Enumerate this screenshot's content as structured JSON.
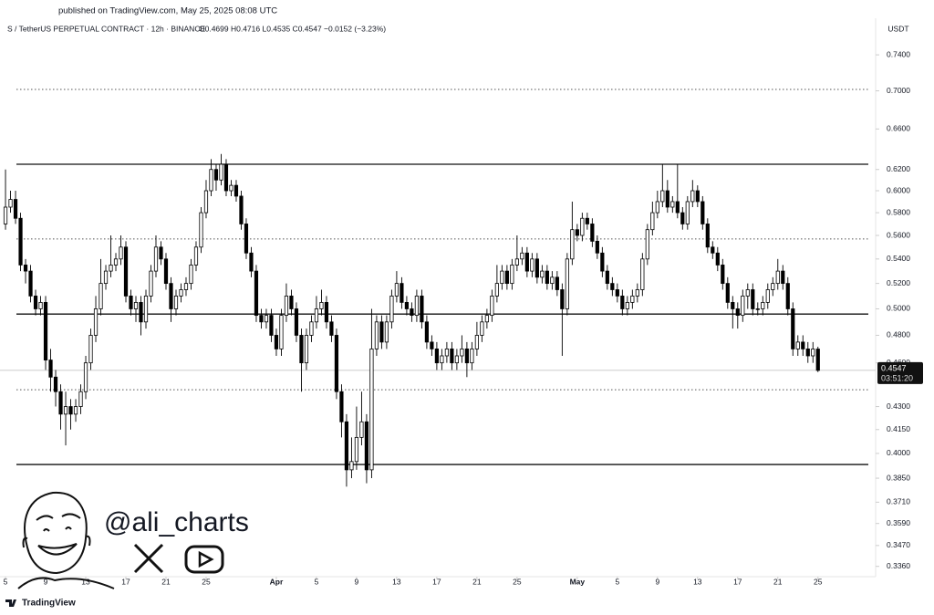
{
  "chart_data": {
    "type": "candlestick",
    "published": "published on TradingView.com, May 25, 2025 08:08 UTC",
    "symbol": "S / TetherUS PERPETUAL CONTRACT · 12h · BINANCE",
    "ohlc_header": "O0.4699 H0.4716 L0.4535 C0.4547 −0.0152 (−3.23%)",
    "currency": "USDT",
    "watermark": "@ali_charts",
    "brand": "TradingView",
    "last_price": 0.4547,
    "countdown": "03:51:20",
    "log_scale": true,
    "up_color": "#ffffff",
    "down_color": "#000000",
    "outline_color": "#000000",
    "ylim": [
      0.3307,
      0.783
    ],
    "yticks": [
      {
        "value": 0.74,
        "label": "0.7400"
      },
      {
        "value": 0.7,
        "label": "0.7000"
      },
      {
        "value": 0.66,
        "label": "0.6600"
      },
      {
        "value": 0.62,
        "label": "0.6200"
      },
      {
        "value": 0.6,
        "label": "0.6000"
      },
      {
        "value": 0.58,
        "label": "0.5800"
      },
      {
        "value": 0.56,
        "label": "0.5600"
      },
      {
        "value": 0.54,
        "label": "0.5400"
      },
      {
        "value": 0.52,
        "label": "0.5200"
      },
      {
        "value": 0.5,
        "label": "0.5000"
      },
      {
        "value": 0.48,
        "label": "0.4800"
      },
      {
        "value": 0.46,
        "label": "0.4600"
      },
      {
        "value": 0.43,
        "label": "0.4300"
      },
      {
        "value": 0.415,
        "label": "0.4150"
      },
      {
        "value": 0.4,
        "label": "0.4000"
      },
      {
        "value": 0.385,
        "label": "0.3850"
      },
      {
        "value": 0.371,
        "label": "0.3710"
      },
      {
        "value": 0.359,
        "label": "0.3590"
      },
      {
        "value": 0.347,
        "label": "0.3470"
      },
      {
        "value": 0.336,
        "label": "0.3360"
      }
    ],
    "xlim": [
      -1.1,
      173.5
    ],
    "xticks": [
      {
        "value": 0,
        "label": "5"
      },
      {
        "value": 8,
        "label": "9"
      },
      {
        "value": 16,
        "label": "13"
      },
      {
        "value": 24,
        "label": "17"
      },
      {
        "value": 32,
        "label": "21"
      },
      {
        "value": 40,
        "label": "25"
      },
      {
        "value": 54,
        "label": "Apr"
      },
      {
        "value": 62,
        "label": "5"
      },
      {
        "value": 70,
        "label": "9"
      },
      {
        "value": 78,
        "label": "13"
      },
      {
        "value": 86,
        "label": "17"
      },
      {
        "value": 94,
        "label": "21"
      },
      {
        "value": 102,
        "label": "25"
      },
      {
        "value": 114,
        "label": "May"
      },
      {
        "value": 122,
        "label": "5"
      },
      {
        "value": 130,
        "label": "9"
      },
      {
        "value": 138,
        "label": "13"
      },
      {
        "value": 146,
        "label": "17"
      },
      {
        "value": 154,
        "label": "21"
      },
      {
        "value": 162,
        "label": "25"
      }
    ],
    "levels": [
      {
        "value": 0.7015,
        "style": "dotted"
      },
      {
        "value": 0.625,
        "style": "solid"
      },
      {
        "value": 0.557,
        "style": "dotted"
      },
      {
        "value": 0.496,
        "style": "solid"
      },
      {
        "value": 0.4413,
        "style": "dotted"
      },
      {
        "value": 0.3932,
        "style": "solid"
      }
    ],
    "ohlc": [
      [
        0.57,
        0.62,
        0.565,
        0.585
      ],
      [
        0.585,
        0.6,
        0.58,
        0.592
      ],
      [
        0.592,
        0.6,
        0.57,
        0.575
      ],
      [
        0.575,
        0.58,
        0.53,
        0.535
      ],
      [
        0.535,
        0.54,
        0.52,
        0.53
      ],
      [
        0.53,
        0.535,
        0.505,
        0.51
      ],
      [
        0.51,
        0.515,
        0.495,
        0.5
      ],
      [
        0.5,
        0.51,
        0.495,
        0.505
      ],
      [
        0.505,
        0.51,
        0.455,
        0.462
      ],
      [
        0.462,
        0.47,
        0.44,
        0.45
      ],
      [
        0.45,
        0.455,
        0.43,
        0.44
      ],
      [
        0.44,
        0.445,
        0.415,
        0.425
      ],
      [
        0.425,
        0.44,
        0.405,
        0.43
      ],
      [
        0.43,
        0.435,
        0.415,
        0.425
      ],
      [
        0.425,
        0.435,
        0.42,
        0.43
      ],
      [
        0.43,
        0.445,
        0.425,
        0.44
      ],
      [
        0.44,
        0.465,
        0.435,
        0.46
      ],
      [
        0.46,
        0.485,
        0.455,
        0.48
      ],
      [
        0.48,
        0.51,
        0.475,
        0.5
      ],
      [
        0.5,
        0.54,
        0.495,
        0.52
      ],
      [
        0.52,
        0.535,
        0.515,
        0.53
      ],
      [
        0.53,
        0.56,
        0.525,
        0.535
      ],
      [
        0.535,
        0.545,
        0.53,
        0.54
      ],
      [
        0.54,
        0.56,
        0.535,
        0.55
      ],
      [
        0.55,
        0.555,
        0.505,
        0.51
      ],
      [
        0.51,
        0.515,
        0.495,
        0.5
      ],
      [
        0.5,
        0.51,
        0.49,
        0.505
      ],
      [
        0.505,
        0.51,
        0.48,
        0.49
      ],
      [
        0.49,
        0.515,
        0.485,
        0.51
      ],
      [
        0.51,
        0.535,
        0.505,
        0.53
      ],
      [
        0.53,
        0.56,
        0.525,
        0.55
      ],
      [
        0.55,
        0.555,
        0.535,
        0.54
      ],
      [
        0.54,
        0.545,
        0.515,
        0.52
      ],
      [
        0.52,
        0.525,
        0.49,
        0.5
      ],
      [
        0.5,
        0.515,
        0.495,
        0.51
      ],
      [
        0.51,
        0.52,
        0.505,
        0.515
      ],
      [
        0.515,
        0.525,
        0.51,
        0.52
      ],
      [
        0.52,
        0.54,
        0.515,
        0.535
      ],
      [
        0.535,
        0.555,
        0.53,
        0.55
      ],
      [
        0.55,
        0.585,
        0.545,
        0.58
      ],
      [
        0.58,
        0.61,
        0.575,
        0.6
      ],
      [
        0.6,
        0.63,
        0.595,
        0.62
      ],
      [
        0.62,
        0.625,
        0.6,
        0.61
      ],
      [
        0.61,
        0.635,
        0.605,
        0.625
      ],
      [
        0.625,
        0.63,
        0.595,
        0.6
      ],
      [
        0.6,
        0.61,
        0.595,
        0.605
      ],
      [
        0.605,
        0.61,
        0.59,
        0.595
      ],
      [
        0.595,
        0.6,
        0.565,
        0.57
      ],
      [
        0.57,
        0.575,
        0.54,
        0.545
      ],
      [
        0.545,
        0.55,
        0.525,
        0.53
      ],
      [
        0.53,
        0.535,
        0.49,
        0.495
      ],
      [
        0.495,
        0.5,
        0.485,
        0.49
      ],
      [
        0.49,
        0.5,
        0.485,
        0.495
      ],
      [
        0.495,
        0.5,
        0.475,
        0.48
      ],
      [
        0.48,
        0.485,
        0.465,
        0.47
      ],
      [
        0.47,
        0.5,
        0.465,
        0.495
      ],
      [
        0.495,
        0.52,
        0.49,
        0.51
      ],
      [
        0.51,
        0.515,
        0.495,
        0.5
      ],
      [
        0.5,
        0.505,
        0.475,
        0.48
      ],
      [
        0.48,
        0.485,
        0.44,
        0.46
      ],
      [
        0.46,
        0.485,
        0.455,
        0.48
      ],
      [
        0.48,
        0.495,
        0.475,
        0.49
      ],
      [
        0.49,
        0.51,
        0.485,
        0.5
      ],
      [
        0.5,
        0.515,
        0.495,
        0.505
      ],
      [
        0.505,
        0.51,
        0.485,
        0.49
      ],
      [
        0.49,
        0.495,
        0.475,
        0.48
      ],
      [
        0.48,
        0.485,
        0.435,
        0.44
      ],
      [
        0.44,
        0.445,
        0.41,
        0.42
      ],
      [
        0.42,
        0.425,
        0.38,
        0.39
      ],
      [
        0.39,
        0.41,
        0.385,
        0.395
      ],
      [
        0.395,
        0.43,
        0.39,
        0.41
      ],
      [
        0.41,
        0.44,
        0.405,
        0.42
      ],
      [
        0.42,
        0.425,
        0.382,
        0.39
      ],
      [
        0.39,
        0.5,
        0.385,
        0.47
      ],
      [
        0.47,
        0.495,
        0.465,
        0.49
      ],
      [
        0.49,
        0.495,
        0.47,
        0.475
      ],
      [
        0.475,
        0.495,
        0.47,
        0.49
      ],
      [
        0.49,
        0.515,
        0.485,
        0.51
      ],
      [
        0.51,
        0.53,
        0.505,
        0.52
      ],
      [
        0.52,
        0.525,
        0.5,
        0.505
      ],
      [
        0.505,
        0.51,
        0.495,
        0.5
      ],
      [
        0.5,
        0.505,
        0.49,
        0.495
      ],
      [
        0.495,
        0.515,
        0.49,
        0.51
      ],
      [
        0.51,
        0.515,
        0.485,
        0.49
      ],
      [
        0.49,
        0.495,
        0.47,
        0.475
      ],
      [
        0.475,
        0.48,
        0.465,
        0.47
      ],
      [
        0.47,
        0.475,
        0.455,
        0.46
      ],
      [
        0.46,
        0.47,
        0.455,
        0.465
      ],
      [
        0.465,
        0.475,
        0.46,
        0.47
      ],
      [
        0.47,
        0.475,
        0.455,
        0.46
      ],
      [
        0.46,
        0.47,
        0.455,
        0.465
      ],
      [
        0.465,
        0.48,
        0.46,
        0.47
      ],
      [
        0.47,
        0.475,
        0.45,
        0.46
      ],
      [
        0.46,
        0.475,
        0.455,
        0.47
      ],
      [
        0.47,
        0.49,
        0.465,
        0.48
      ],
      [
        0.48,
        0.495,
        0.475,
        0.49
      ],
      [
        0.49,
        0.5,
        0.485,
        0.495
      ],
      [
        0.495,
        0.515,
        0.49,
        0.51
      ],
      [
        0.51,
        0.535,
        0.505,
        0.52
      ],
      [
        0.52,
        0.535,
        0.515,
        0.53
      ],
      [
        0.53,
        0.535,
        0.515,
        0.52
      ],
      [
        0.52,
        0.54,
        0.515,
        0.535
      ],
      [
        0.535,
        0.56,
        0.53,
        0.54
      ],
      [
        0.54,
        0.55,
        0.535,
        0.545
      ],
      [
        0.545,
        0.55,
        0.525,
        0.53
      ],
      [
        0.53,
        0.545,
        0.525,
        0.54
      ],
      [
        0.54,
        0.545,
        0.52,
        0.525
      ],
      [
        0.525,
        0.535,
        0.52,
        0.53
      ],
      [
        0.53,
        0.535,
        0.515,
        0.52
      ],
      [
        0.52,
        0.53,
        0.515,
        0.525
      ],
      [
        0.525,
        0.53,
        0.51,
        0.515
      ],
      [
        0.515,
        0.52,
        0.465,
        0.5
      ],
      [
        0.5,
        0.545,
        0.495,
        0.54
      ],
      [
        0.54,
        0.59,
        0.535,
        0.565
      ],
      [
        0.565,
        0.57,
        0.555,
        0.56
      ],
      [
        0.56,
        0.58,
        0.555,
        0.575
      ],
      [
        0.575,
        0.58,
        0.565,
        0.57
      ],
      [
        0.57,
        0.575,
        0.55,
        0.555
      ],
      [
        0.555,
        0.56,
        0.54,
        0.545
      ],
      [
        0.545,
        0.55,
        0.525,
        0.53
      ],
      [
        0.53,
        0.535,
        0.515,
        0.52
      ],
      [
        0.52,
        0.525,
        0.51,
        0.515
      ],
      [
        0.515,
        0.52,
        0.505,
        0.51
      ],
      [
        0.51,
        0.515,
        0.495,
        0.5
      ],
      [
        0.5,
        0.51,
        0.495,
        0.505
      ],
      [
        0.505,
        0.515,
        0.5,
        0.51
      ],
      [
        0.51,
        0.52,
        0.505,
        0.515
      ],
      [
        0.515,
        0.545,
        0.51,
        0.54
      ],
      [
        0.54,
        0.57,
        0.535,
        0.565
      ],
      [
        0.565,
        0.59,
        0.56,
        0.58
      ],
      [
        0.58,
        0.6,
        0.575,
        0.59
      ],
      [
        0.59,
        0.625,
        0.585,
        0.6
      ],
      [
        0.6,
        0.61,
        0.58,
        0.585
      ],
      [
        0.585,
        0.595,
        0.58,
        0.59
      ],
      [
        0.59,
        0.625,
        0.575,
        0.58
      ],
      [
        0.58,
        0.585,
        0.565,
        0.57
      ],
      [
        0.57,
        0.595,
        0.565,
        0.59
      ],
      [
        0.59,
        0.61,
        0.585,
        0.6
      ],
      [
        0.6,
        0.605,
        0.585,
        0.59
      ],
      [
        0.59,
        0.595,
        0.565,
        0.57
      ],
      [
        0.57,
        0.575,
        0.545,
        0.55
      ],
      [
        0.55,
        0.555,
        0.54,
        0.545
      ],
      [
        0.545,
        0.55,
        0.53,
        0.535
      ],
      [
        0.535,
        0.54,
        0.515,
        0.52
      ],
      [
        0.52,
        0.525,
        0.5,
        0.505
      ],
      [
        0.505,
        0.51,
        0.485,
        0.5
      ],
      [
        0.5,
        0.505,
        0.485,
        0.495
      ],
      [
        0.495,
        0.515,
        0.49,
        0.51
      ],
      [
        0.51,
        0.52,
        0.5,
        0.515
      ],
      [
        0.515,
        0.52,
        0.495,
        0.5
      ],
      [
        0.5,
        0.505,
        0.495,
        0.5
      ],
      [
        0.5,
        0.51,
        0.495,
        0.505
      ],
      [
        0.505,
        0.52,
        0.5,
        0.515
      ],
      [
        0.515,
        0.525,
        0.51,
        0.52
      ],
      [
        0.52,
        0.54,
        0.515,
        0.53
      ],
      [
        0.53,
        0.535,
        0.515,
        0.52
      ],
      [
        0.52,
        0.525,
        0.495,
        0.5
      ],
      [
        0.5,
        0.505,
        0.465,
        0.47
      ],
      [
        0.47,
        0.48,
        0.465,
        0.475
      ],
      [
        0.475,
        0.48,
        0.465,
        0.47
      ],
      [
        0.47,
        0.475,
        0.46,
        0.465
      ],
      [
        0.465,
        0.475,
        0.46,
        0.4699
      ],
      [
        0.4699,
        0.4716,
        0.4535,
        0.4547
      ]
    ]
  }
}
